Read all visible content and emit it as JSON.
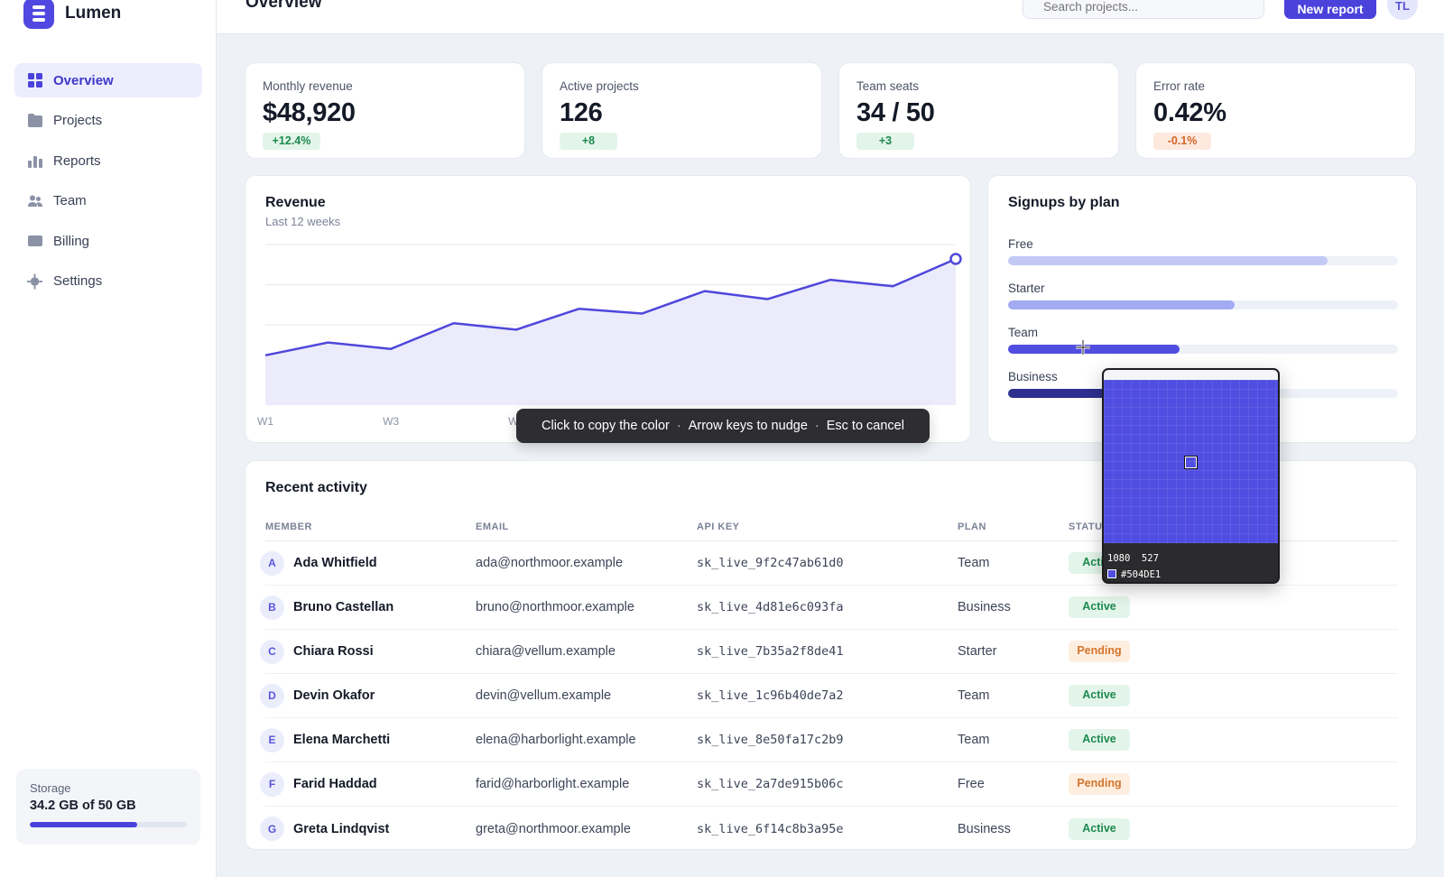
{
  "app": {
    "name": "Lumen",
    "page_title": "Overview"
  },
  "topbar": {
    "search_placeholder": "Search projects...",
    "new_report_label": "New report",
    "avatar_initials": "TL"
  },
  "sidebar": {
    "items": [
      {
        "label": "Overview",
        "icon": "grid-icon",
        "active": true
      },
      {
        "label": "Projects",
        "icon": "folder-icon",
        "active": false
      },
      {
        "label": "Reports",
        "icon": "bar-chart-icon",
        "active": false
      },
      {
        "label": "Team",
        "icon": "users-icon",
        "active": false
      },
      {
        "label": "Billing",
        "icon": "card-icon",
        "active": false
      },
      {
        "label": "Settings",
        "icon": "gear-icon",
        "active": false
      }
    ],
    "storage": {
      "label": "Storage",
      "value": "34.2 GB of 50 GB",
      "fraction": 0.684
    }
  },
  "kpis": [
    {
      "label": "Monthly revenue",
      "value": "$48,920",
      "delta": "+12.4%",
      "trend": "up"
    },
    {
      "label": "Active projects",
      "value": "126",
      "delta": "+8",
      "trend": "up"
    },
    {
      "label": "Team seats",
      "value": "34 / 50",
      "delta": "+3",
      "trend": "up"
    },
    {
      "label": "Error rate",
      "value": "0.42%",
      "delta": "-0.1%",
      "trend": "down"
    }
  ],
  "revenue": {
    "title": "Revenue",
    "subtitle": "Last 12 weeks",
    "chart_data": {
      "type": "area",
      "x": [
        "W1",
        "W2",
        "W3",
        "W4",
        "W5",
        "W6",
        "W7",
        "W8",
        "W9",
        "W10",
        "W11",
        "W12"
      ],
      "tick_labels_visible": [
        "W1",
        "W3",
        "W5"
      ],
      "values": [
        31,
        39,
        35,
        51,
        47,
        60,
        57,
        71,
        66,
        78,
        74,
        91
      ],
      "ylim": [
        0,
        100
      ],
      "grid": true,
      "color": "#4f47db",
      "fill": "#ecebfb"
    }
  },
  "signups": {
    "title": "Signups by plan",
    "chart_data": {
      "type": "bar",
      "orientation": "horizontal",
      "categories": [
        "Free",
        "Starter",
        "Team",
        "Business"
      ],
      "values": [
        0.82,
        0.58,
        0.44,
        0.25
      ],
      "colors": [
        "#c3c9f5",
        "#a3abf2",
        "#504de1",
        "#2e2f8f"
      ]
    }
  },
  "hint": {
    "copy": "Click to copy the color",
    "nudge": "Arrow keys to nudge",
    "cancel": "Esc to cancel",
    "separator": "·"
  },
  "picker": {
    "coords": "1080  527",
    "hex": "#504DE1",
    "color": "#504de1"
  },
  "activity": {
    "title": "Recent activity",
    "columns": [
      "MEMBER",
      "EMAIL",
      "API KEY",
      "PLAN",
      "STATUS"
    ],
    "rows": [
      {
        "initial": "A",
        "member": "Ada Whitfield",
        "email": "ada@northmoor.example",
        "api_key": "sk_live_9f2c47ab61d0",
        "plan": "Team",
        "status": "Active"
      },
      {
        "initial": "B",
        "member": "Bruno Castellan",
        "email": "bruno@northmoor.example",
        "api_key": "sk_live_4d81e6c093fa",
        "plan": "Business",
        "status": "Active"
      },
      {
        "initial": "C",
        "member": "Chiara Rossi",
        "email": "chiara@vellum.example",
        "api_key": "sk_live_7b35a2f8de41",
        "plan": "Starter",
        "status": "Pending"
      },
      {
        "initial": "D",
        "member": "Devin Okafor",
        "email": "devin@vellum.example",
        "api_key": "sk_live_1c96b40de7a2",
        "plan": "Team",
        "status": "Active"
      },
      {
        "initial": "E",
        "member": "Elena Marchetti",
        "email": "elena@harborlight.example",
        "api_key": "sk_live_8e50fa17c2b9",
        "plan": "Team",
        "status": "Active"
      },
      {
        "initial": "F",
        "member": "Farid Haddad",
        "email": "farid@harborlight.example",
        "api_key": "sk_live_2a7de915b06c",
        "plan": "Free",
        "status": "Pending"
      },
      {
        "initial": "G",
        "member": "Greta Lindqvist",
        "email": "greta@northmoor.example",
        "api_key": "sk_live_6f14c8b3a95e",
        "plan": "Business",
        "status": "Active"
      }
    ]
  }
}
